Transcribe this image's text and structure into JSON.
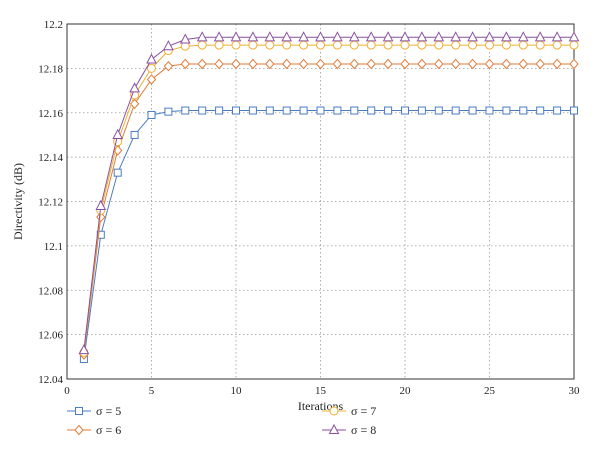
{
  "chart_data": {
    "type": "line",
    "title": "",
    "xlabel": "Iterations",
    "ylabel": "Directivity (dB)",
    "xlim": [
      0,
      30
    ],
    "ylim": [
      12.04,
      12.2
    ],
    "xticks": [
      0,
      5,
      10,
      15,
      20,
      25,
      30
    ],
    "yticks": [
      12.04,
      12.06,
      12.08,
      12.1,
      12.12,
      12.14,
      12.16,
      12.18,
      12.2
    ],
    "ytick_labels": [
      "12.04",
      "12.06",
      "12.08",
      "12.1",
      "12.12",
      "12.14",
      "12.16",
      "12.18",
      "12.2"
    ],
    "grid": true,
    "legend_position": "bottom",
    "x": [
      1,
      2,
      3,
      4,
      5,
      6,
      7,
      8,
      9,
      10,
      11,
      12,
      13,
      14,
      15,
      16,
      17,
      18,
      19,
      20,
      21,
      22,
      23,
      24,
      25,
      26,
      27,
      28,
      29,
      30
    ],
    "series": [
      {
        "name": "σ = 5",
        "color": "#4a7cc4",
        "marker": "square",
        "values": [
          12.049,
          12.105,
          12.133,
          12.15,
          12.159,
          12.1605,
          12.161,
          12.161,
          12.161,
          12.161,
          12.161,
          12.161,
          12.161,
          12.161,
          12.161,
          12.161,
          12.161,
          12.161,
          12.161,
          12.161,
          12.161,
          12.161,
          12.161,
          12.161,
          12.161,
          12.161,
          12.161,
          12.161,
          12.161,
          12.161
        ]
      },
      {
        "name": "σ = 6",
        "color": "#e07b39",
        "marker": "diamond",
        "values": [
          12.051,
          12.113,
          12.143,
          12.164,
          12.175,
          12.181,
          12.182,
          12.182,
          12.182,
          12.182,
          12.182,
          12.182,
          12.182,
          12.182,
          12.182,
          12.182,
          12.182,
          12.182,
          12.182,
          12.182,
          12.182,
          12.182,
          12.182,
          12.182,
          12.182,
          12.182,
          12.182,
          12.182,
          12.182,
          12.182
        ]
      },
      {
        "name": "σ = 7",
        "color": "#f0b030",
        "marker": "circle",
        "values": [
          12.052,
          12.116,
          12.147,
          12.168,
          12.18,
          12.188,
          12.19,
          12.1905,
          12.1905,
          12.1905,
          12.1905,
          12.1905,
          12.1905,
          12.1905,
          12.1905,
          12.1905,
          12.1905,
          12.1905,
          12.1905,
          12.1905,
          12.1905,
          12.1905,
          12.1905,
          12.1905,
          12.1905,
          12.1905,
          12.1905,
          12.1905,
          12.1905,
          12.1905
        ]
      },
      {
        "name": "σ = 8",
        "color": "#8a4fa0",
        "marker": "triangle",
        "values": [
          12.053,
          12.118,
          12.15,
          12.171,
          12.184,
          12.19,
          12.193,
          12.194,
          12.194,
          12.194,
          12.194,
          12.194,
          12.194,
          12.194,
          12.194,
          12.194,
          12.194,
          12.194,
          12.194,
          12.194,
          12.194,
          12.194,
          12.194,
          12.194,
          12.194,
          12.194,
          12.194,
          12.194,
          12.194,
          12.194
        ]
      }
    ]
  }
}
